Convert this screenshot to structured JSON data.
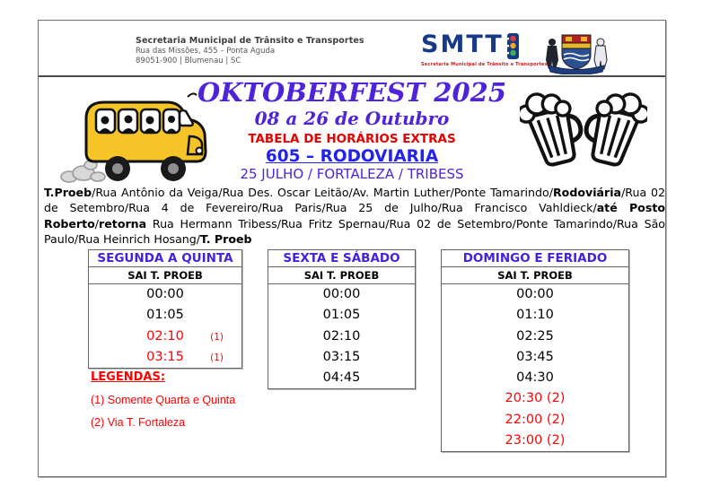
{
  "header": {
    "org_name": "Secretaria Municipal de Trânsito e Transportes",
    "address_line1": "Rua das Missões, 455 – Ponta Aguda",
    "address_line2": "89051-900 | Blumenau | SC",
    "logo_text": "SMTT",
    "logo_subtitle": "Secretaria Municipal de Trânsito e Transportes"
  },
  "title": {
    "event": "OKTOBERFEST 2025",
    "dates": "08 a 26 de Outubro",
    "table_label": "TABELA DE HORÁRIOS EXTRAS",
    "line": "605 – RODOVIARIA",
    "route_name": "25 JULHO / FORTALEZA / TRIBESS"
  },
  "route_description": {
    "segments": [
      {
        "text": "T.Proeb",
        "bold": true
      },
      {
        "text": "/Rua Antônio da Veiga/Rua Des. Oscar Leitão/Av. Martin Luther/Ponte Tamarindo/",
        "bold": false
      },
      {
        "text": "Rodoviária",
        "bold": true
      },
      {
        "text": "/Rua 02 de Setembro/Rua 4 de Fevereiro/Rua Paris/Rua 25 de Julho/Rua Francisco Vahldieck/",
        "bold": false
      },
      {
        "text": "até Posto Roberto",
        "bold": true
      },
      {
        "text": "/",
        "bold": false
      },
      {
        "text": "retorna",
        "bold": true
      },
      {
        "text": " Rua Hermann Tribess/Rua Fritz Spernau/Rua 02 de Setembro/Ponte Tamarindo/Rua São Paulo/Rua Heinrich Hosang/",
        "bold": false
      },
      {
        "text": "T. Proeb",
        "bold": true
      }
    ]
  },
  "tables": [
    {
      "day_label": "SEGUNDA A QUINTA",
      "column_header": "SAI T. PROEB",
      "times": [
        {
          "time": "00:00",
          "note": "",
          "red": false
        },
        {
          "time": "01:05",
          "note": "",
          "red": false
        },
        {
          "time": "02:10",
          "note": "(1)",
          "red": true
        },
        {
          "time": "03:15",
          "note": "(1)",
          "red": true
        }
      ]
    },
    {
      "day_label": "SEXTA E SÁBADO",
      "column_header": "SAI T. PROEB",
      "times": [
        {
          "time": "00:00",
          "note": "",
          "red": false
        },
        {
          "time": "01:05",
          "note": "",
          "red": false
        },
        {
          "time": "02:10",
          "note": "",
          "red": false
        },
        {
          "time": "03:15",
          "note": "",
          "red": false
        },
        {
          "time": "04:45",
          "note": "",
          "red": false
        }
      ]
    },
    {
      "day_label": "DOMINGO E FERIADO",
      "column_header": "SAI T. PROEB",
      "times": [
        {
          "time": "00:00",
          "note": "",
          "red": false
        },
        {
          "time": "01:10",
          "note": "",
          "red": false
        },
        {
          "time": "02:25",
          "note": "",
          "red": false
        },
        {
          "time": "03:45",
          "note": "",
          "red": false
        },
        {
          "time": "04:30",
          "note": "",
          "red": false
        },
        {
          "time": "20:30 (2)",
          "note": "",
          "red": true
        },
        {
          "time": "22:00 (2)",
          "note": "",
          "red": true
        },
        {
          "time": "23:00 (2)",
          "note": "",
          "red": true
        }
      ]
    }
  ],
  "legends": {
    "title": "LEGENDAS",
    "colon": ":",
    "items": [
      "(1) Somente Quarta e Quinta",
      "(2) Via T. Fortaleza"
    ]
  },
  "colors": {
    "title_violet": "#4e23d9",
    "line_blue": "#2222ee",
    "alert_red": "#ff0000",
    "logo_navy": "#173a86"
  }
}
